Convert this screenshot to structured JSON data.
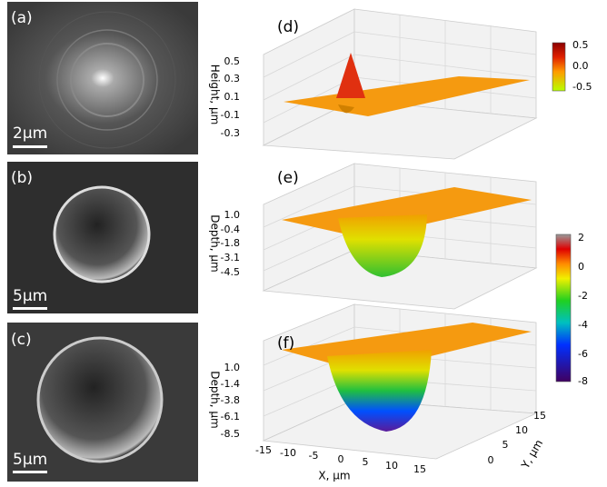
{
  "panels": [
    {
      "label": "(a)",
      "scale_bar": "2µm"
    },
    {
      "label": "(b)",
      "scale_bar": "5µm"
    },
    {
      "label": "(c)",
      "scale_bar": "5µm"
    }
  ],
  "plots": [
    {
      "label": "(d)",
      "z_label": "Height, µm",
      "z_ticks": [
        "0.5",
        "0.3",
        "0.1",
        "-0.1",
        "-0.3"
      ],
      "colorbar_ticks": [
        "0.5",
        "0.0",
        "-0.5"
      ]
    },
    {
      "label": "(e)",
      "z_label": "Depth, µm",
      "z_ticks": [
        "1.0",
        "-0.4",
        "-1.8",
        "-3.1",
        "-4.5"
      ]
    },
    {
      "label": "(f)",
      "z_label": "Depth, µm",
      "z_ticks": [
        "1.0",
        "-1.4",
        "-3.8",
        "-6.1",
        "-8.5"
      ],
      "x_label": "X, µm",
      "x_ticks": [
        "-15",
        "-10",
        "-5",
        "0",
        "5",
        "10",
        "15"
      ],
      "y_label": "Y, µm",
      "y_ticks": [
        "0",
        "5",
        "10",
        "15"
      ]
    }
  ],
  "colorbar": {
    "ticks": [
      "2",
      "0",
      "-2",
      "-4",
      "-6",
      "-8"
    ]
  }
}
